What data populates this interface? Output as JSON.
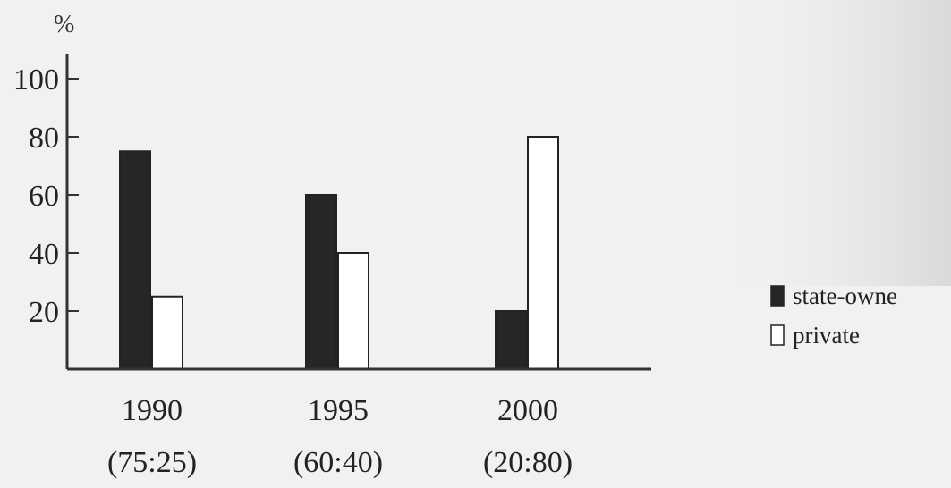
{
  "chart_data": {
    "type": "bar",
    "title": "",
    "ylabel": "%",
    "xlabel": "",
    "ylim": [
      0,
      100
    ],
    "yticks": [
      20,
      40,
      60,
      80,
      100
    ],
    "grid": false,
    "categories": [
      "1990",
      "1995",
      "2000"
    ],
    "category_sublabels": [
      "(75:25)",
      "(60:40)",
      "(20:80)"
    ],
    "series": [
      {
        "name": "state-owne",
        "values": [
          75,
          60,
          20
        ],
        "color": "#262626"
      },
      {
        "name": "private",
        "values": [
          25,
          40,
          80
        ],
        "color": "#ffffff"
      }
    ],
    "legend_placement": "right"
  }
}
